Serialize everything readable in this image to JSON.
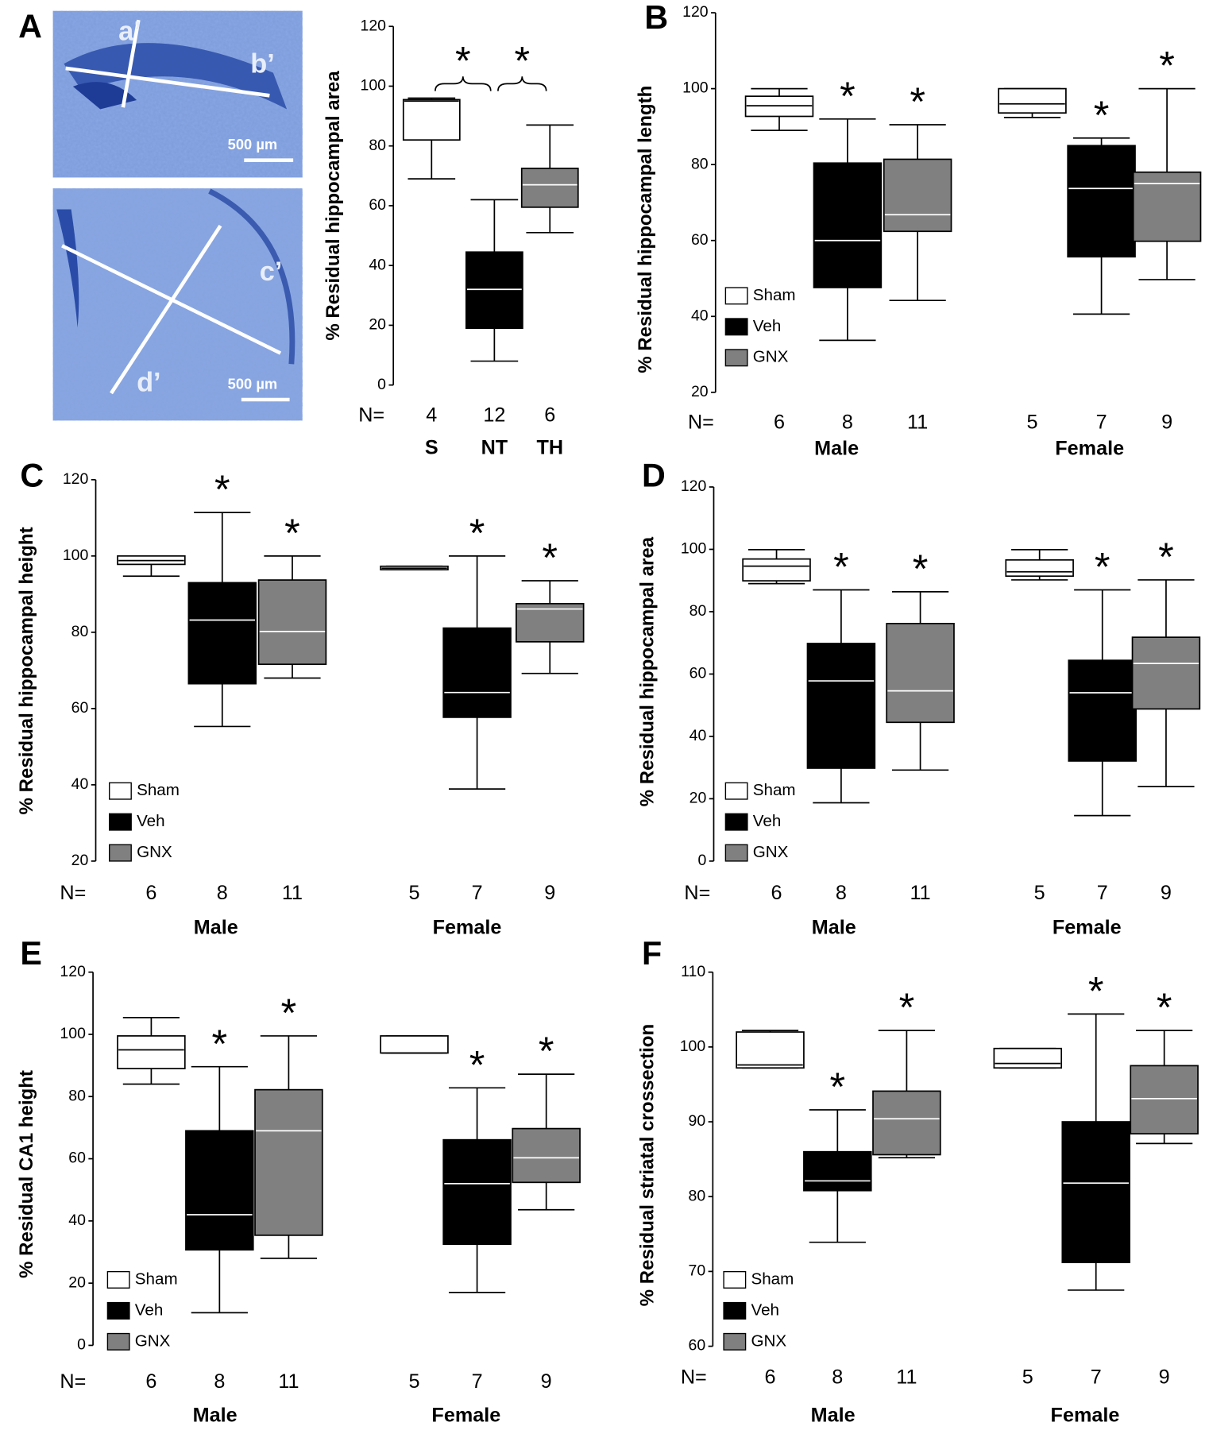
{
  "micrographs": [
    {
      "labels": [
        "a’",
        "b’"
      ],
      "scale_bar": "500 µm"
    },
    {
      "labels": [
        "c’",
        "d’"
      ],
      "scale_bar": "500 µm"
    }
  ],
  "chart_data": [
    {
      "type": "box",
      "panel": "A",
      "ylabel": "% Residual hippocampal area",
      "ylim": [
        0,
        120
      ],
      "yticks": [
        0,
        20,
        40,
        60,
        80,
        100,
        120
      ],
      "n_label": "N=",
      "categories": [
        "S",
        "NT",
        "TH"
      ],
      "colors": [
        "#ffffff",
        "#000000",
        "#808080"
      ],
      "n": [
        4,
        12,
        6
      ],
      "boxes": [
        {
          "min": 69,
          "q1": 82,
          "median": 95,
          "q3": 95.5,
          "max": 96
        },
        {
          "min": 8,
          "q1": 19,
          "median": 32,
          "q3": 44.5,
          "max": 62
        },
        {
          "min": 51,
          "q1": 59.5,
          "median": 67,
          "q3": 72.5,
          "max": 87
        }
      ],
      "comparisons": [
        {
          "pair": [
            0,
            1
          ],
          "label": "*"
        },
        {
          "pair": [
            1,
            2
          ],
          "label": "*"
        }
      ]
    },
    {
      "type": "box",
      "panel": "B",
      "ylabel": "% Residual hippocampal length",
      "ylim": [
        20,
        120
      ],
      "yticks": [
        20,
        40,
        60,
        80,
        100,
        120
      ],
      "n_label": "N=",
      "groups": [
        "Male",
        "Female"
      ],
      "series": [
        {
          "name": "Sham",
          "color": "#ffffff",
          "n": [
            6,
            5
          ],
          "boxes": [
            {
              "min": 89,
              "q1": 92.7,
              "median": 95.5,
              "q3": 98,
              "max": 100
            },
            {
              "min": 92.4,
              "q1": 93.6,
              "median": 96,
              "q3": 100,
              "max": 100
            }
          ]
        },
        {
          "name": "Veh",
          "color": "#000000",
          "n": [
            8,
            7
          ],
          "stars": [
            "*",
            "*"
          ],
          "boxes": [
            {
              "min": 33.7,
              "q1": 47.6,
              "median": 60,
              "q3": 80.4,
              "max": 92
            },
            {
              "min": 40.6,
              "q1": 55.7,
              "median": 73.7,
              "q3": 85,
              "max": 87
            }
          ]
        },
        {
          "name": "GNX",
          "color": "#808080",
          "n": [
            11,
            9
          ],
          "stars": [
            "*",
            "*"
          ],
          "boxes": [
            {
              "min": 44.2,
              "q1": 62.4,
              "median": 66.8,
              "q3": 81.4,
              "max": 90.5
            },
            {
              "min": 49.7,
              "q1": 59.8,
              "median": 75,
              "q3": 78,
              "max": 100
            }
          ]
        }
      ]
    },
    {
      "type": "box",
      "panel": "C",
      "ylabel": "% Residual hippocampal height",
      "ylim": [
        20,
        120
      ],
      "yticks": [
        20,
        40,
        60,
        80,
        100,
        120
      ],
      "n_label": "N=",
      "groups": [
        "Male",
        "Female"
      ],
      "series": [
        {
          "name": "Sham",
          "color": "#ffffff",
          "n": [
            6,
            5
          ],
          "boxes": [
            {
              "min": 94.7,
              "q1": 97.8,
              "median": 98.8,
              "q3": 100,
              "max": 100
            },
            {
              "min": 96.4,
              "q1": 96.4,
              "median": 96.8,
              "q3": 97.3,
              "max": 97.3
            }
          ]
        },
        {
          "name": "Veh",
          "color": "#000000",
          "n": [
            8,
            7
          ],
          "stars": [
            "*",
            "*"
          ],
          "boxes": [
            {
              "min": 55.3,
              "q1": 66.5,
              "median": 83.2,
              "q3": 93,
              "max": 111.4
            },
            {
              "min": 38.9,
              "q1": 57.7,
              "median": 64.2,
              "q3": 81.1,
              "max": 100
            }
          ]
        },
        {
          "name": "GNX",
          "color": "#808080",
          "n": [
            11,
            9
          ],
          "stars": [
            "*",
            "*"
          ],
          "boxes": [
            {
              "min": 68,
              "q1": 71.6,
              "median": 80.2,
              "q3": 93.7,
              "max": 100
            },
            {
              "min": 69.2,
              "q1": 77.5,
              "median": 86.1,
              "q3": 87.5,
              "max": 93.5
            }
          ]
        }
      ]
    },
    {
      "type": "box",
      "panel": "D",
      "ylabel": "% Residual hippocampal area",
      "ylim": [
        0,
        120
      ],
      "yticks": [
        0,
        20,
        40,
        60,
        80,
        100,
        120
      ],
      "n_label": "N=",
      "groups": [
        "Male",
        "Female"
      ],
      "series": [
        {
          "name": "Sham",
          "color": "#ffffff",
          "n": [
            6,
            5
          ],
          "boxes": [
            {
              "min": 89,
              "q1": 89.9,
              "median": 94.6,
              "q3": 96.9,
              "max": 99.9
            },
            {
              "min": 90.2,
              "q1": 91.4,
              "median": 92.8,
              "q3": 96.6,
              "max": 99.9
            }
          ]
        },
        {
          "name": "Veh",
          "color": "#000000",
          "n": [
            8,
            7
          ],
          "stars": [
            "*",
            "*"
          ],
          "boxes": [
            {
              "min": 18.7,
              "q1": 29.8,
              "median": 57.8,
              "q3": 69.8,
              "max": 87
            },
            {
              "min": 14.6,
              "q1": 32.1,
              "median": 54,
              "q3": 64.4,
              "max": 87
            }
          ]
        },
        {
          "name": "GNX",
          "color": "#808080",
          "n": [
            11,
            9
          ],
          "stars": [
            "*",
            "*"
          ],
          "boxes": [
            {
              "min": 29.2,
              "q1": 44.5,
              "median": 54.6,
              "q3": 76.2,
              "max": 86.4
            },
            {
              "min": 23.9,
              "q1": 48.8,
              "median": 63.4,
              "q3": 71.8,
              "max": 90.2
            }
          ]
        }
      ]
    },
    {
      "type": "box",
      "panel": "E",
      "ylabel": "% Residual CA1 height",
      "ylim": [
        0,
        120
      ],
      "yticks": [
        0,
        20,
        40,
        60,
        80,
        100,
        120
      ],
      "n_label": "N=",
      "groups": [
        "Male",
        "Female"
      ],
      "series": [
        {
          "name": "Sham",
          "color": "#ffffff",
          "n": [
            6,
            5
          ],
          "boxes": [
            {
              "min": 84,
              "q1": 89,
              "median": 95,
              "q3": 99.5,
              "max": 105.4
            },
            {
              "min": 94,
              "q1": 94,
              "median": 94,
              "q3": 99.5,
              "max": 99.5
            }
          ]
        },
        {
          "name": "Veh",
          "color": "#000000",
          "n": [
            8,
            7
          ],
          "stars": [
            "*",
            "*"
          ],
          "boxes": [
            {
              "min": 10.5,
              "q1": 30.7,
              "median": 42,
              "q3": 69,
              "max": 89.6
            },
            {
              "min": 17,
              "q1": 32.5,
              "median": 52,
              "q3": 66.1,
              "max": 82.8
            }
          ]
        },
        {
          "name": "GNX",
          "color": "#808080",
          "n": [
            11,
            9
          ],
          "stars": [
            "*",
            "*"
          ],
          "boxes": [
            {
              "min": 28,
              "q1": 35.4,
              "median": 69,
              "q3": 82.2,
              "max": 99.5
            },
            {
              "min": 43.6,
              "q1": 52.4,
              "median": 60.3,
              "q3": 69.7,
              "max": 87.2
            }
          ]
        }
      ]
    },
    {
      "type": "box",
      "panel": "F",
      "ylabel": "% Residual striatal crossection",
      "ylim": [
        60,
        110
      ],
      "yticks": [
        60,
        70,
        80,
        90,
        100,
        110
      ],
      "n_label": "N=",
      "groups": [
        "Male",
        "Female"
      ],
      "series": [
        {
          "name": "Sham",
          "color": "#ffffff",
          "n": [
            6,
            5
          ],
          "boxes": [
            {
              "min": 97.2,
              "q1": 97.2,
              "median": 97.6,
              "q3": 102,
              "max": 102.2
            },
            {
              "min": 97.2,
              "q1": 97.2,
              "median": 97.8,
              "q3": 99.8,
              "max": 99.8
            }
          ]
        },
        {
          "name": "Veh",
          "color": "#000000",
          "n": [
            8,
            7
          ],
          "stars": [
            "*",
            "*"
          ],
          "boxes": [
            {
              "min": 73.9,
              "q1": 80.8,
              "median": 82.1,
              "q3": 86,
              "max": 91.6
            },
            {
              "min": 67.5,
              "q1": 71.2,
              "median": 81.8,
              "q3": 90,
              "max": 104.4
            }
          ]
        },
        {
          "name": "GNX",
          "color": "#808080",
          "n": [
            11,
            9
          ],
          "stars": [
            "*",
            "*"
          ],
          "boxes": [
            {
              "min": 85.2,
              "q1": 85.6,
              "median": 90.4,
              "q3": 94.1,
              "max": 102.2
            },
            {
              "min": 87.1,
              "q1": 88.4,
              "median": 93.1,
              "q3": 97.5,
              "max": 102.2
            }
          ]
        }
      ]
    }
  ]
}
